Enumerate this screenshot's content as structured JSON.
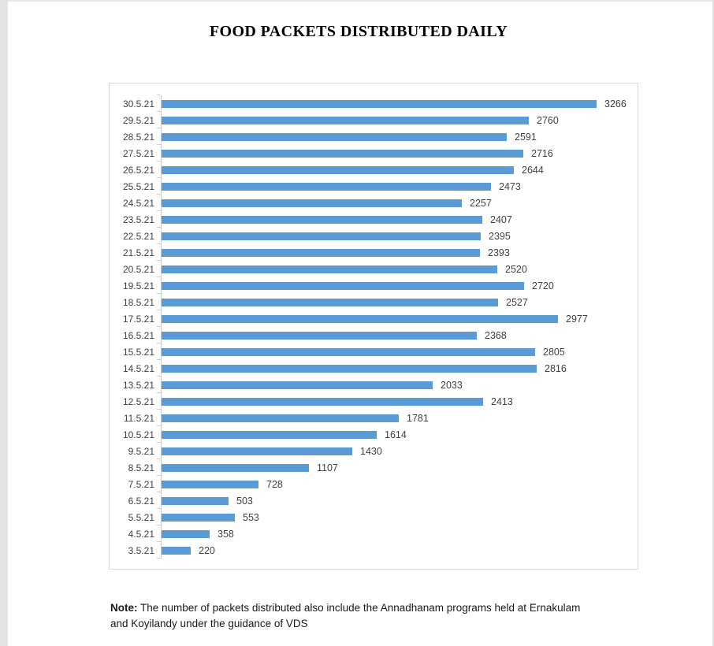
{
  "header": {
    "title": "FOOD PACKETS DISTRIBUTED DAILY"
  },
  "chart_data": {
    "type": "bar",
    "orientation": "horizontal",
    "title": "FOOD PACKETS DISTRIBUTED DAILY",
    "categories": [
      "30.5.21",
      "29.5.21",
      "28.5.21",
      "27.5.21",
      "26.5.21",
      "25.5.21",
      "24.5.21",
      "23.5.21",
      "22.5.21",
      "21.5.21",
      "20.5.21",
      "19.5.21",
      "18.5.21",
      "17.5.21",
      "16.5.21",
      "15.5.21",
      "14.5.21",
      "13.5.21",
      "12.5.21",
      "11.5.21",
      "10.5.21",
      "9.5.21",
      "8.5.21",
      "7.5.21",
      "6.5.21",
      "5.5.21",
      "4.5.21",
      "3.5.21"
    ],
    "values": [
      3266,
      2760,
      2591,
      2716,
      2644,
      2473,
      2257,
      2407,
      2395,
      2393,
      2520,
      2720,
      2527,
      2977,
      2368,
      2805,
      2816,
      2033,
      2413,
      1781,
      1614,
      1430,
      1107,
      728,
      503,
      553,
      358,
      220
    ],
    "xlabel": "",
    "ylabel": "",
    "xlim": [
      0,
      3500
    ],
    "grid": false,
    "legend": false,
    "data_labels": true,
    "bar_color": "#5b9bd5",
    "axis_color": "#c9c9c9",
    "category_label_color": "#3f3f3f",
    "value_label_color": "#404040"
  },
  "note": {
    "label": "Note:",
    "line1": "The number of packets distributed also include the Annadhanam programs held at Ernakulam",
    "line2": "and Koyilandy under the guidance of VDS"
  }
}
